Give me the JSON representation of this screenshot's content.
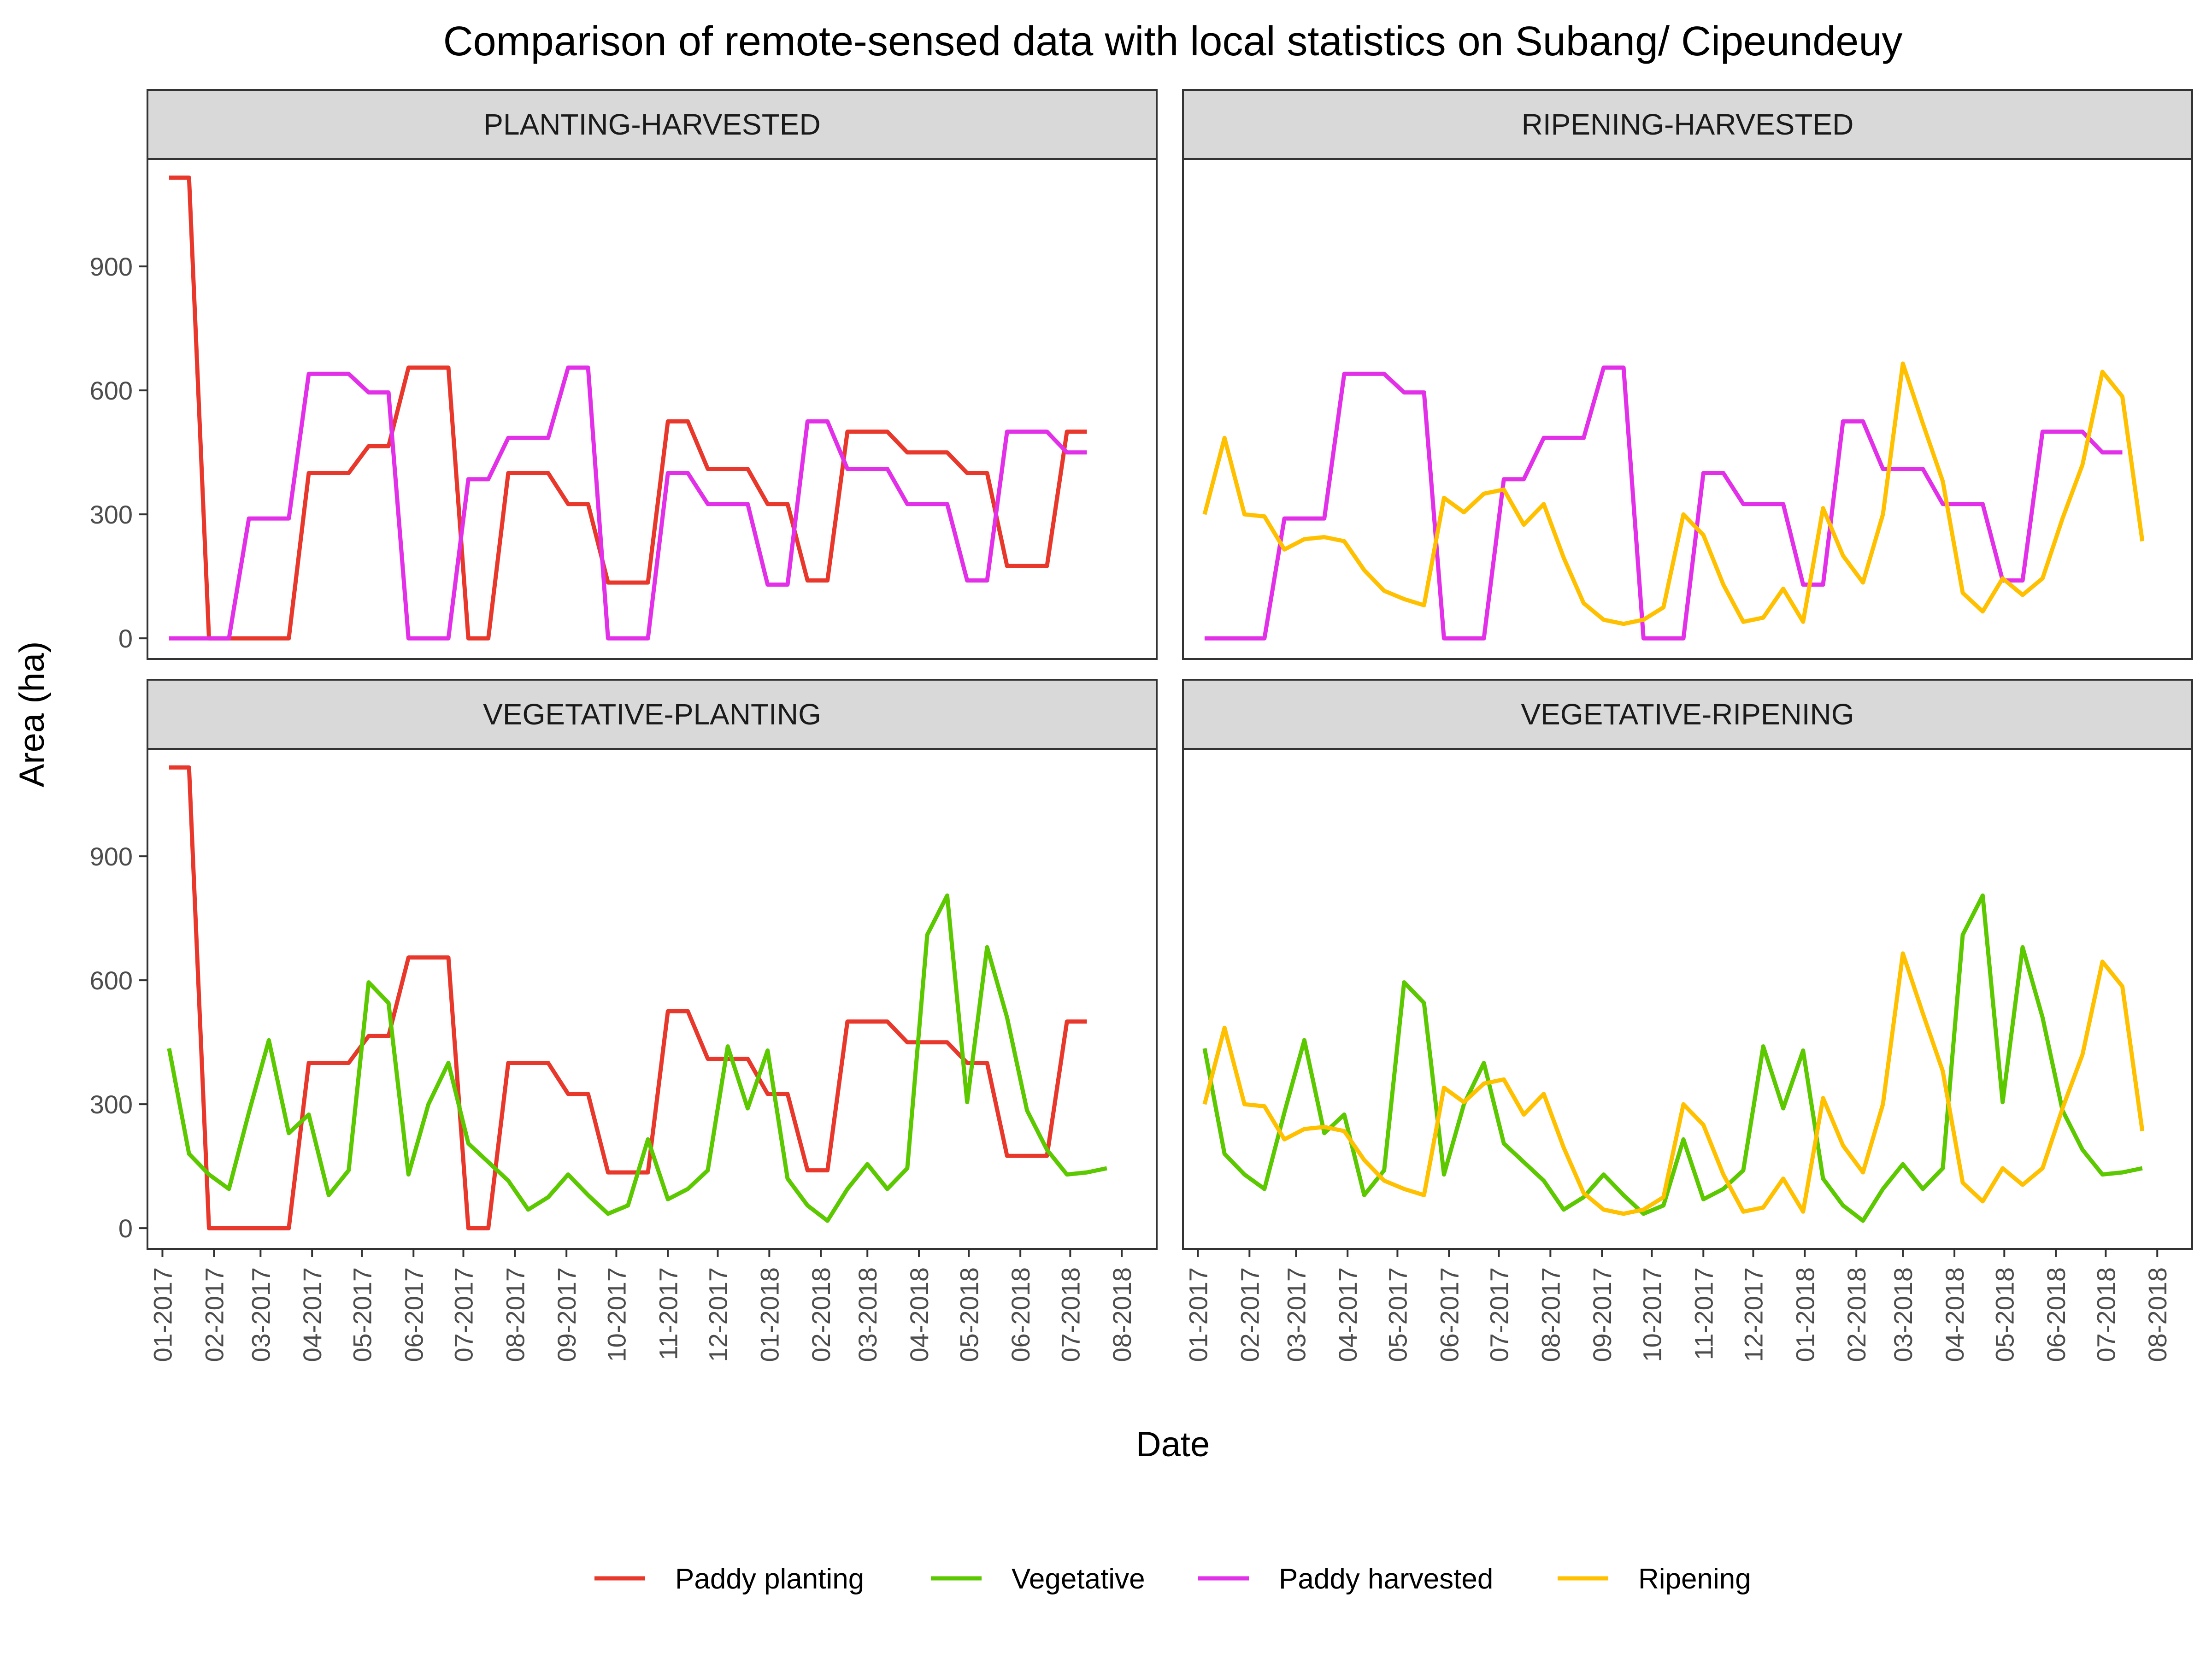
{
  "chart_data": {
    "type": "line",
    "title": "Comparison of remote-sensed data with local statistics on Subang/ Cipeundeuy",
    "xlabel": "Date",
    "ylabel": "Area (ha)",
    "ylim": [
      -50,
      1160
    ],
    "yticks": [
      0,
      300,
      600,
      900
    ],
    "grid": false,
    "legend_position": "bottom",
    "x_ticks": [
      "01-2017",
      "02-2017",
      "03-2017",
      "04-2017",
      "05-2017",
      "06-2017",
      "07-2017",
      "08-2017",
      "09-2017",
      "10-2017",
      "11-2017",
      "12-2017",
      "01-2018",
      "02-2018",
      "03-2018",
      "04-2018",
      "05-2018",
      "06-2018",
      "07-2018",
      "08-2018"
    ],
    "x": [
      "2017-01-05",
      "2017-01-17",
      "2017-01-29",
      "2017-02-10",
      "2017-02-22",
      "2017-03-06",
      "2017-03-18",
      "2017-03-30",
      "2017-04-11",
      "2017-04-23",
      "2017-05-05",
      "2017-05-17",
      "2017-05-29",
      "2017-06-10",
      "2017-06-22",
      "2017-07-04",
      "2017-07-16",
      "2017-07-28",
      "2017-08-09",
      "2017-08-21",
      "2017-09-02",
      "2017-09-14",
      "2017-09-26",
      "2017-10-08",
      "2017-10-20",
      "2017-11-01",
      "2017-11-13",
      "2017-11-25",
      "2017-12-07",
      "2017-12-19",
      "2017-12-31",
      "2018-01-12",
      "2018-01-24",
      "2018-02-05",
      "2018-02-17",
      "2018-03-01",
      "2018-03-13",
      "2018-03-25",
      "2018-04-06",
      "2018-04-18",
      "2018-04-30",
      "2018-05-12",
      "2018-05-24",
      "2018-06-05",
      "2018-06-17",
      "2018-06-29",
      "2018-07-11",
      "2018-07-23"
    ],
    "series": [
      {
        "name": "Paddy planting",
        "color": "#e8372b",
        "values": [
          1115,
          1115,
          0,
          0,
          0,
          0,
          0,
          400,
          400,
          400,
          465,
          465,
          655,
          655,
          655,
          0,
          0,
          400,
          400,
          400,
          325,
          325,
          135,
          135,
          135,
          525,
          525,
          410,
          410,
          410,
          325,
          325,
          140,
          140,
          500,
          500,
          500,
          450,
          450,
          450,
          400,
          400,
          175,
          175,
          175,
          500,
          500,
          null
        ]
      },
      {
        "name": "Vegetative",
        "color": "#5cc800",
        "values": [
          435,
          180,
          130,
          95,
          280,
          455,
          230,
          275,
          80,
          140,
          595,
          545,
          130,
          300,
          400,
          205,
          160,
          115,
          45,
          75,
          130,
          80,
          35,
          55,
          215,
          70,
          95,
          140,
          440,
          290,
          430,
          120,
          55,
          18,
          95,
          155,
          95,
          145,
          710,
          805,
          305,
          680,
          510,
          285,
          190,
          130,
          135,
          145
        ]
      },
      {
        "name": "Paddy harvested",
        "color": "#e22fe8",
        "values": [
          0,
          0,
          0,
          0,
          290,
          290,
          290,
          640,
          640,
          640,
          595,
          595,
          0,
          0,
          0,
          385,
          385,
          485,
          485,
          485,
          655,
          655,
          0,
          0,
          0,
          400,
          400,
          325,
          325,
          325,
          130,
          130,
          525,
          525,
          410,
          410,
          410,
          325,
          325,
          325,
          140,
          140,
          500,
          500,
          500,
          450,
          450,
          null
        ]
      },
      {
        "name": "Ripening",
        "color": "#ffc000",
        "values": [
          300,
          485,
          300,
          295,
          215,
          240,
          245,
          235,
          165,
          115,
          95,
          80,
          340,
          305,
          350,
          360,
          275,
          325,
          195,
          85,
          45,
          35,
          45,
          75,
          300,
          250,
          130,
          40,
          50,
          120,
          40,
          315,
          200,
          135,
          300,
          665,
          520,
          380,
          110,
          65,
          145,
          105,
          145,
          290,
          420,
          645,
          585,
          235
        ]
      }
    ],
    "panels": [
      {
        "title": "PLANTING-HARVESTED",
        "series": [
          "Paddy planting",
          "Paddy harvested"
        ]
      },
      {
        "title": "RIPENING-HARVESTED",
        "series": [
          "Paddy harvested",
          "Ripening"
        ]
      },
      {
        "title": "VEGETATIVE-PLANTING",
        "series": [
          "Paddy planting",
          "Vegetative"
        ]
      },
      {
        "title": "VEGETATIVE-RIPENING",
        "series": [
          "Vegetative",
          "Ripening"
        ]
      }
    ]
  }
}
